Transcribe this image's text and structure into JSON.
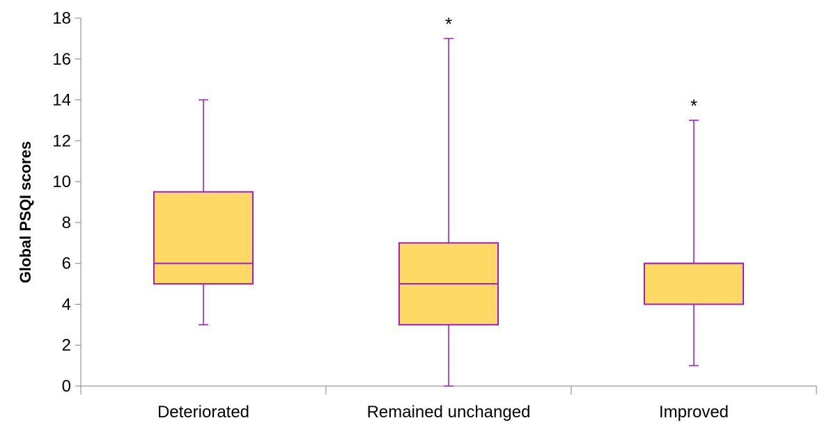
{
  "chart_data": {
    "type": "box",
    "ylabel": "Global PSQI scores",
    "xlabel": "",
    "ylim": [
      0,
      18
    ],
    "yticks": [
      0,
      2,
      4,
      6,
      8,
      10,
      12,
      14,
      16,
      18
    ],
    "grid": false,
    "legend": "none",
    "colors": {
      "box_fill": "#FFD966",
      "box_stroke": "#A020C8",
      "axis": "#808080"
    },
    "categories": [
      "Deteriorated",
      "Remained unchanged",
      "Improved"
    ],
    "boxes": [
      {
        "category": "Deteriorated",
        "min": 3,
        "q1": 5,
        "median": 6,
        "q3": 9.5,
        "max": 14,
        "marker": ""
      },
      {
        "category": "Remained unchanged",
        "min": 0,
        "q1": 3,
        "median": 5,
        "q3": 7,
        "max": 17,
        "marker": "*"
      },
      {
        "category": "Improved",
        "min": 1,
        "q1": 4,
        "median": 6,
        "q3": 6,
        "max": 13,
        "marker": "*"
      }
    ]
  }
}
